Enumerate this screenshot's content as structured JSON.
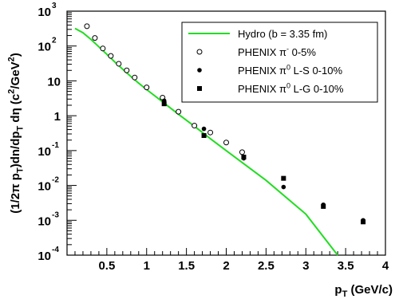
{
  "chart_data": {
    "type": "scatter",
    "xlabel": "p",
    "xlabel_sub": "T",
    "xlabel_unit": " (GeV/c)",
    "ylabel_parts": [
      {
        "text": "(1/2π p"
      },
      {
        "text": "T",
        "sub": true
      },
      {
        "text": ")dn/dp"
      },
      {
        "text": "T",
        "sub": true
      },
      {
        "text": " dη  (c"
      },
      {
        "text": "2",
        "sup": true
      },
      {
        "text": "/GeV"
      },
      {
        "text": "2",
        "sup": true
      },
      {
        "text": ")"
      }
    ],
    "xlim": [
      0,
      4
    ],
    "ylim": [
      0.0001,
      1000
    ],
    "yscale": "log",
    "x_ticks": [
      {
        "value": 0.5,
        "label": "0.5"
      },
      {
        "value": 1,
        "label": "1"
      },
      {
        "value": 1.5,
        "label": "1.5"
      },
      {
        "value": 2,
        "label": "2"
      },
      {
        "value": 2.5,
        "label": "2.5"
      },
      {
        "value": 3,
        "label": "3"
      },
      {
        "value": 3.5,
        "label": "3.5"
      },
      {
        "value": 4,
        "label": "4"
      }
    ],
    "y_ticks": [
      {
        "value": 1000,
        "base": "10",
        "exp": "3"
      },
      {
        "value": 100,
        "base": "10",
        "exp": "2"
      },
      {
        "value": 10,
        "base": "10",
        "exp": ""
      },
      {
        "value": 1,
        "base": "1",
        "exp": ""
      },
      {
        "value": 0.1,
        "base": "10",
        "exp": "-1"
      },
      {
        "value": 0.01,
        "base": "10",
        "exp": "-2"
      },
      {
        "value": 0.001,
        "base": "10",
        "exp": "-3"
      },
      {
        "value": 0.0001,
        "base": "10",
        "exp": "-4"
      }
    ],
    "legend_position": "top-right",
    "series": [
      {
        "name_parts": [
          {
            "text": "Hydro (b = 3.35 fm)"
          }
        ],
        "kind": "line",
        "color": "#22dd22",
        "x": [
          0.1,
          0.2,
          0.3,
          0.4,
          0.5,
          0.6,
          0.7,
          0.8,
          0.9,
          1.0,
          1.2,
          1.4,
          1.6,
          1.8,
          2.0,
          2.5,
          3.0,
          3.4
        ],
        "y": [
          320,
          240,
          155,
          95,
          58,
          35,
          21.5,
          13.5,
          8.6,
          5.6,
          2.5,
          1.1,
          0.5,
          0.22,
          0.1,
          0.014,
          0.0015,
          0.0001
        ]
      },
      {
        "name_parts": [
          {
            "text": "PHENIX π"
          },
          {
            "text": "-",
            "sup": true
          },
          {
            "text": " 0-5%"
          }
        ],
        "kind": "open-circle",
        "x": [
          0.25,
          0.35,
          0.45,
          0.55,
          0.65,
          0.75,
          0.85,
          1.0,
          1.2,
          1.4,
          1.6,
          1.8,
          2.0,
          2.2
        ],
        "y": [
          370,
          170,
          85,
          52,
          31,
          20,
          12.5,
          6.5,
          3.3,
          1.3,
          0.52,
          0.33,
          0.17,
          0.09
        ]
      },
      {
        "name_parts": [
          {
            "text": "PHENIX π"
          },
          {
            "text": "0",
            "sup": true
          },
          {
            "text": " L-S 0-10%"
          }
        ],
        "kind": "filled-circle",
        "x": [
          1.22,
          1.72,
          2.22,
          2.72,
          3.22,
          3.72
        ],
        "y": [
          2.7,
          0.42,
          0.06,
          0.009,
          0.0028,
          0.001
        ]
      },
      {
        "name_parts": [
          {
            "text": "PHENIX π"
          },
          {
            "text": "0",
            "sup": true
          },
          {
            "text": " L-G 0-10%"
          }
        ],
        "kind": "filled-square",
        "x": [
          1.22,
          1.72,
          2.22,
          2.72,
          3.22,
          3.72
        ],
        "y": [
          2.2,
          0.27,
          0.065,
          0.016,
          0.0025,
          0.0009
        ]
      }
    ]
  }
}
